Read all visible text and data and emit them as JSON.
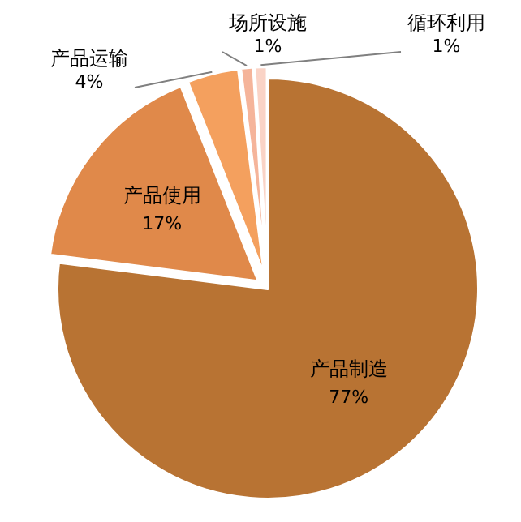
{
  "chart_data": {
    "type": "pie",
    "categories": [
      "产品制造",
      "产品使用",
      "产品运输",
      "场所设施",
      "循环利用"
    ],
    "values": [
      77,
      17,
      4,
      1,
      1
    ],
    "value_labels": [
      "77%",
      "17%",
      "4%",
      "1%",
      "1%"
    ],
    "colors": [
      "#b87333",
      "#e0894a",
      "#f4a05e",
      "#f5b49a",
      "#fad3c6"
    ]
  }
}
